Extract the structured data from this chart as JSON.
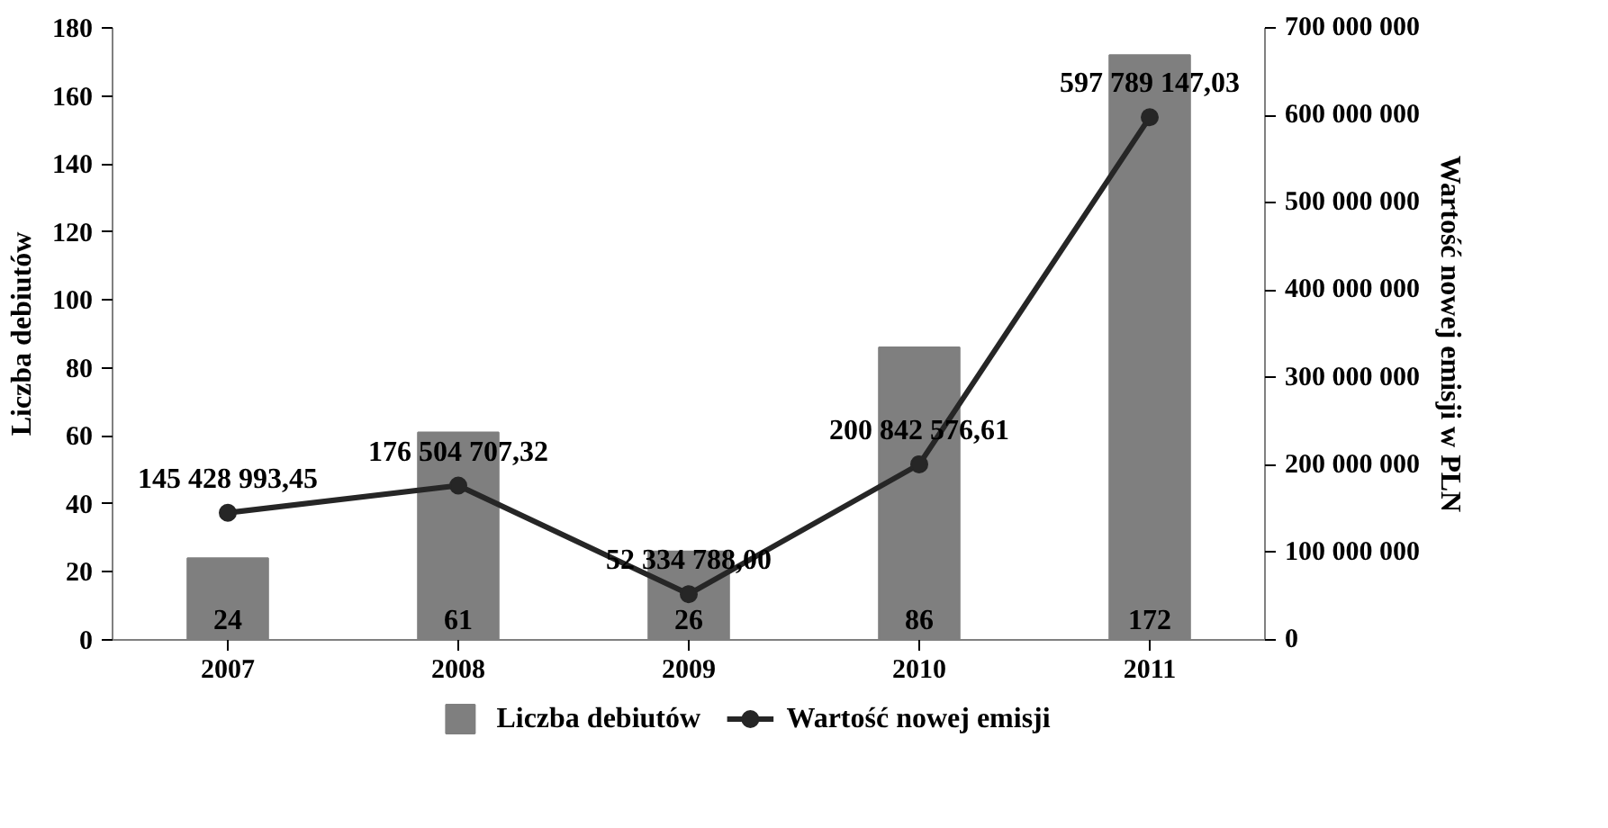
{
  "chart_data": {
    "type": "bar",
    "categories": [
      "2007",
      "2008",
      "2009",
      "2010",
      "2011"
    ],
    "ylabel": "Liczba debiutów",
    "y2label": "Wartość nowej emisji w PLN",
    "ylim": [
      0,
      180
    ],
    "yticks": [
      0,
      20,
      40,
      60,
      80,
      100,
      120,
      140,
      160,
      180
    ],
    "y2lim": [
      0,
      700000000
    ],
    "y2ticks": [
      0,
      {
        "value": 100000000,
        "label": "100 000 000"
      },
      {
        "value": 200000000,
        "label": "200 000 000"
      },
      {
        "value": 300000000,
        "label": "300 000 000"
      },
      {
        "value": 400000000,
        "label": "400 000 000"
      },
      {
        "value": 500000000,
        "label": "500 000 000"
      },
      {
        "value": 600000000,
        "label": "600 000 000"
      },
      {
        "value": 700000000,
        "label": "700 000 000"
      }
    ],
    "grid": false,
    "legend": "bottom",
    "series": [
      {
        "name": "Liczba debiutów",
        "color": "#7f7f7f",
        "values": [
          24,
          61,
          26,
          86,
          172
        ],
        "value_labels": [
          "24",
          "61",
          "26",
          "86",
          "172"
        ]
      },
      {
        "name": "Wartość nowej emisji",
        "type": "line",
        "axis": "y2",
        "color": "#262626",
        "marker": "circle",
        "line_style": "solid",
        "values": [
          145428993.45,
          176504707.32,
          52334788.0,
          200842576.61,
          597789147.03
        ],
        "value_labels": [
          "145 428 993,45",
          "176 504 707,32",
          "52 334 788,00",
          "200 842 576,61",
          "597 789 147,03"
        ]
      }
    ]
  }
}
